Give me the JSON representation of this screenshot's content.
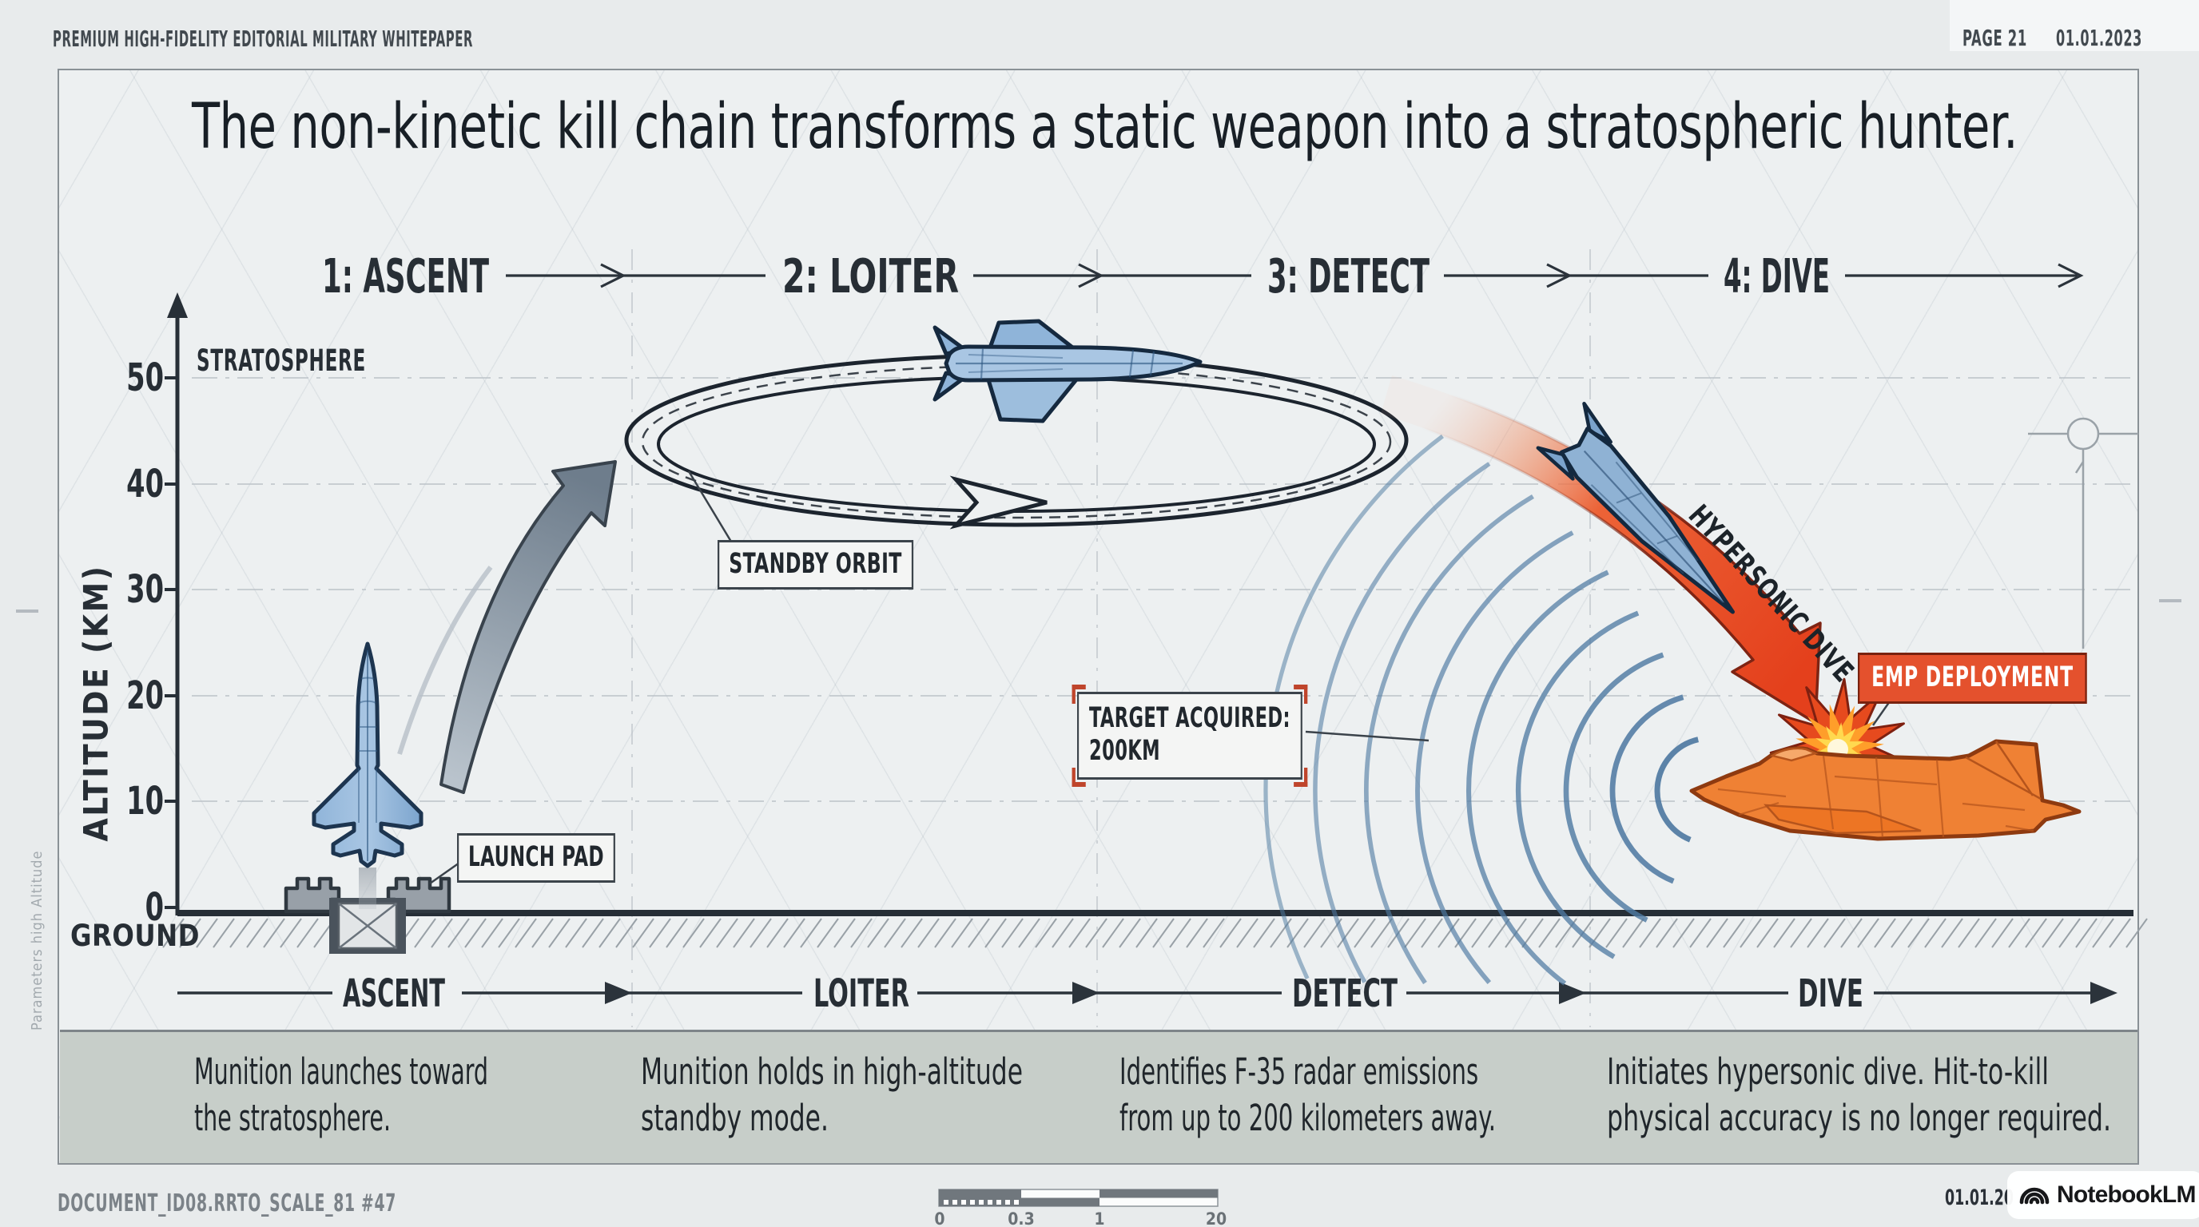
{
  "header": {
    "meta": "PREMIUM HIGH-FIDELITY EDITORIAL MILITARY WHITEPAPER",
    "page": "PAGE 21",
    "date": "01.01.2023"
  },
  "title": "The non-kinetic kill chain transforms a static weapon into a stratospheric hunter.",
  "phases_top": [
    "1: ASCENT",
    "2: LOITER",
    "3: DETECT",
    "4: DIVE"
  ],
  "phases_bottom": [
    "ASCENT",
    "LOITER",
    "DETECT",
    "DIVE"
  ],
  "axis": {
    "y_label": "ALTITUDE (KM)",
    "ticks": [
      "50",
      "40",
      "30",
      "20",
      "10",
      "0"
    ],
    "region_label": "STRATOSPHERE",
    "ground_label": "GROUND"
  },
  "callouts": {
    "launch_pad": "LAUNCH PAD",
    "standby_orbit": "STANDBY ORBIT",
    "target_acquired_line1": "TARGET ACQUIRED:",
    "target_acquired_line2": "200KM",
    "hypersonic_dive": "HYPERSONIC DIVE",
    "emp_deployment": "EMP DEPLOYMENT"
  },
  "descriptions": [
    {
      "line1": "Munition launches toward",
      "line2": "the stratosphere."
    },
    {
      "line1": "Munition holds in high-altitude",
      "line2": "standby mode."
    },
    {
      "line1": "Identifies F-35 radar emissions",
      "line2": "from up to 200 kilometers away."
    },
    {
      "line1": "Initiates hypersonic dive. Hit-to-kill",
      "line2": "physical accuracy is no longer required."
    }
  ],
  "footer": {
    "doc_id": "DOCUMENT_ID08.RRTO_SCALE_81 #47",
    "scale_labels": [
      "0",
      "0.3",
      "1",
      "20"
    ],
    "date_partial": "01.01.20",
    "watermark": "NotebookLM"
  },
  "margin_note": "Parameters high Altitude",
  "colors": {
    "accent_red": "#e4512d",
    "steel_blue": "#4f7aa2",
    "missile_blue": "#a9c6e3",
    "jet_orange": "#f08336",
    "band_grey": "#c7cec9",
    "ink": "#20272e"
  }
}
